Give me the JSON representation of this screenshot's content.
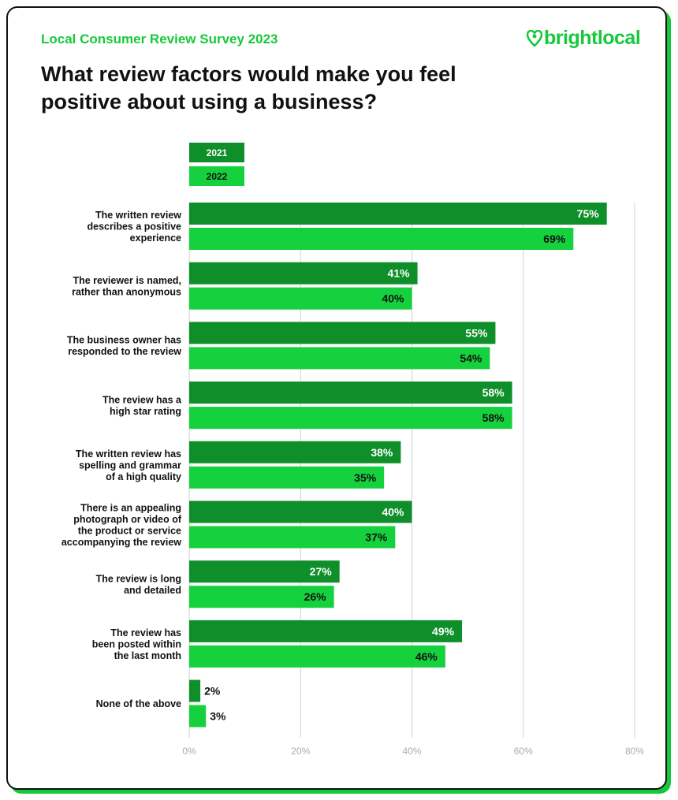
{
  "header": {
    "subtitle": "Local Consumer Review Survey 2023",
    "logo": "brightlocal",
    "logo_icon": "heart-pin-icon"
  },
  "chart_data": {
    "type": "bar",
    "orientation": "horizontal",
    "title": "What review factors would make you feel positive about using a business?",
    "categories": [
      [
        "The written review",
        "describes a positive",
        "experience"
      ],
      [
        "The reviewer is named,",
        "rather than anonymous"
      ],
      [
        "The business owner has",
        "responded to the review"
      ],
      [
        "The review has a",
        "high star rating"
      ],
      [
        "The written review has",
        "spelling and grammar",
        "of a high quality"
      ],
      [
        "There is an appealing",
        "photograph or video of",
        "the product or service",
        "accompanying the review"
      ],
      [
        "The review is long",
        "and detailed"
      ],
      [
        "The review has",
        "been posted within",
        "the last month"
      ],
      [
        "None of the above"
      ]
    ],
    "series": [
      {
        "name": "2021",
        "color": "#0f8f2a",
        "label_color": "#ffffff",
        "values": [
          75,
          41,
          55,
          58,
          38,
          40,
          27,
          49,
          2
        ]
      },
      {
        "name": "2022",
        "color": "#16d13e",
        "label_color": "#111111",
        "values": [
          69,
          40,
          54,
          58,
          35,
          37,
          26,
          46,
          3
        ]
      }
    ],
    "xlim": [
      0,
      80
    ],
    "xticks": [
      "0%",
      "20%",
      "40%",
      "60%",
      "80%"
    ],
    "grid": true,
    "legend_position": "top-left"
  }
}
